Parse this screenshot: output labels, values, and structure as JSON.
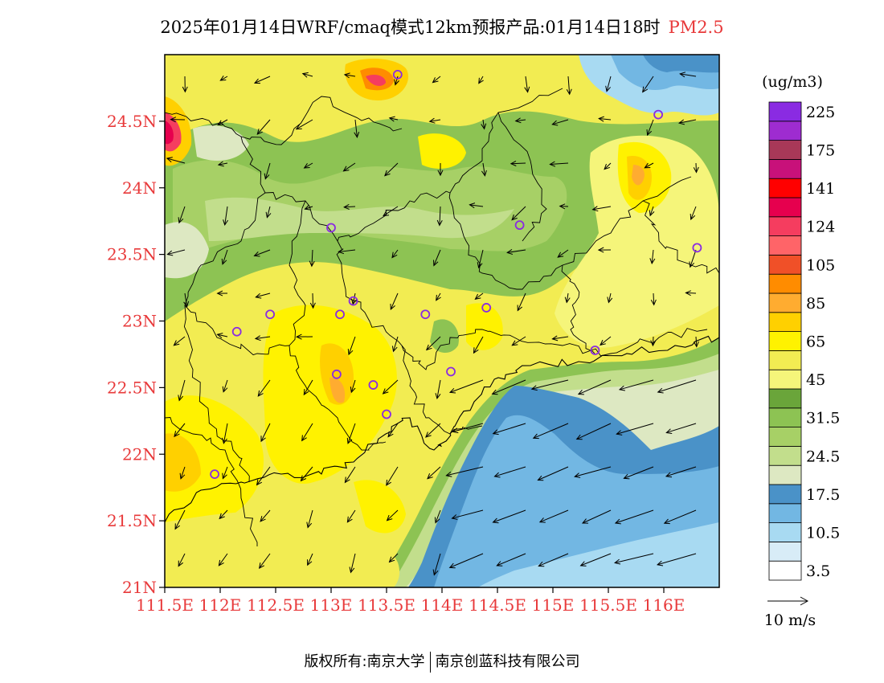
{
  "title": {
    "text": "2025年01月14日WRF/cmaq模式12km预报产品:01月14日18时",
    "variable": "PM2.5"
  },
  "map": {
    "lon_labels": [
      "111.5E",
      "112E",
      "112.5E",
      "113E",
      "113.5E",
      "114E",
      "114.5E",
      "115E",
      "115.5E",
      "116E"
    ],
    "lat_labels": [
      "24.5N",
      "24N",
      "23.5N",
      "23N",
      "22.5N",
      "22N",
      "21.5N",
      "21N"
    ],
    "lon_range": [
      111.5,
      116.5
    ],
    "lat_range": [
      21.0,
      25.0
    ],
    "grid": false
  },
  "legend": {
    "unit": "(ug/m3)",
    "colors": [
      "#ffffff",
      "#d8ecf7",
      "#a8daf2",
      "#72b7e3",
      "#4a92c8",
      "#dde8c2",
      "#c2de8c",
      "#a7d066",
      "#8dc353",
      "#6aa53a",
      "#f5f57a",
      "#f2ec52",
      "#fff200",
      "#ffd000",
      "#ffac30",
      "#ff8c00",
      "#f05028",
      "#ff6468",
      "#f53d5f",
      "#e6004e",
      "#ff0000",
      "#c8117a",
      "#a83858",
      "#9e2cd0",
      "#8a2be2"
    ],
    "labels": [
      "3.5",
      "10.5",
      "17.5",
      "24.5",
      "31.5",
      "45",
      "65",
      "85",
      "105",
      "124",
      "141",
      "175",
      "225"
    ]
  },
  "wind": {
    "scale_label": "10 m/s"
  },
  "stations": [
    {
      "lon": 111.95,
      "lat": 21.85
    },
    {
      "lon": 112.15,
      "lat": 22.92
    },
    {
      "lon": 112.45,
      "lat": 23.05
    },
    {
      "lon": 113.0,
      "lat": 23.7
    },
    {
      "lon": 113.2,
      "lat": 23.15
    },
    {
      "lon": 113.08,
      "lat": 23.05
    },
    {
      "lon": 113.05,
      "lat": 22.6
    },
    {
      "lon": 113.38,
      "lat": 22.52
    },
    {
      "lon": 113.5,
      "lat": 22.3
    },
    {
      "lon": 113.85,
      "lat": 23.05
    },
    {
      "lon": 114.08,
      "lat": 22.62
    },
    {
      "lon": 114.4,
      "lat": 23.1
    },
    {
      "lon": 114.7,
      "lat": 23.72
    },
    {
      "lon": 115.38,
      "lat": 22.78
    },
    {
      "lon": 116.3,
      "lat": 23.55
    },
    {
      "lon": 115.95,
      "lat": 24.55
    },
    {
      "lon": 113.6,
      "lat": 24.85
    }
  ],
  "footer": {
    "left": "版权所有:南京大学",
    "right": "南京创蓝科技有限公司"
  }
}
